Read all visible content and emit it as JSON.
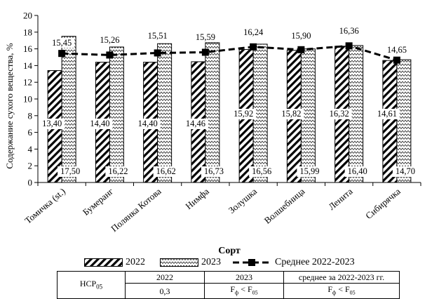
{
  "chart_data": {
    "type": "bar",
    "xlabel": "Сорт",
    "ylabel": "Содержание сухого вещества, %",
    "ylim": [
      0,
      20
    ],
    "yticks": [
      0,
      2,
      4,
      6,
      8,
      10,
      12,
      14,
      16,
      18,
      20
    ],
    "categories": [
      "Томичка (st.)",
      "Бумеранг",
      "Полянка Котова",
      "Нимфа",
      "Золушка",
      "Волшебница",
      "Ленита",
      "Сибирячка"
    ],
    "series": [
      {
        "name": "2022",
        "type": "bar",
        "values": [
          13.4,
          14.4,
          14.4,
          14.46,
          15.92,
          15.82,
          16.32,
          14.61
        ],
        "labels": [
          "13,40",
          "14,40",
          "14,40",
          "14,46",
          "15,92",
          "15,82",
          "16,32",
          "14,61"
        ]
      },
      {
        "name": "2023",
        "type": "bar",
        "values": [
          17.5,
          16.22,
          16.62,
          16.73,
          16.56,
          15.99,
          16.4,
          14.7
        ],
        "labels": [
          "17,50",
          "16,22",
          "16,62",
          "16,73",
          "16,56",
          "15,99",
          "16,40",
          "14,70"
        ]
      },
      {
        "name": "Среднее 2022-2023",
        "type": "line",
        "values": [
          15.45,
          15.26,
          15.51,
          15.59,
          16.24,
          15.9,
          16.36,
          14.65
        ],
        "labels": [
          "15,45",
          "15,26",
          "15,51",
          "15,59",
          "16,24",
          "15,90",
          "16,36",
          "14,65"
        ]
      }
    ],
    "legend_position": "bottom",
    "grid": false
  },
  "lsd_table": {
    "row_header": "НСР",
    "row_header_sub": "05",
    "headers": [
      "2022",
      "2023",
      "среднее за 2022-2023 гг."
    ],
    "values": [
      "0,3",
      "Fф < F05",
      "Fф < F05"
    ]
  }
}
